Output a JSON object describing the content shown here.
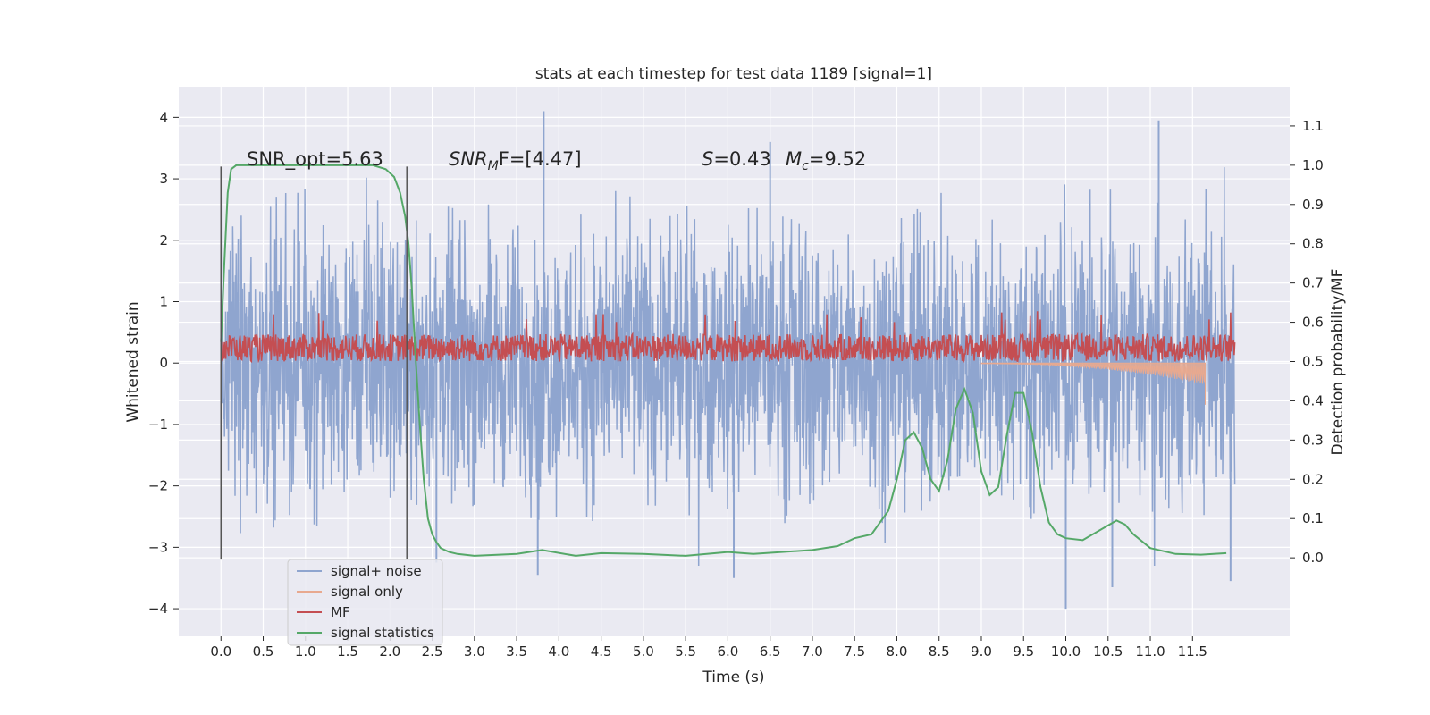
{
  "chart_data": {
    "type": "line",
    "title": "stats at each timestep for test data 1189 [signal=1]",
    "xlabel": "Time (s)",
    "ylabel_left": "Whitened strain",
    "ylabel_right": "Detection probability/MF",
    "xlim": [
      -0.5,
      12.65
    ],
    "ylim_left": [
      -4.45,
      4.5
    ],
    "ylim_right": [
      -0.2,
      1.2
    ],
    "xticks": [
      0.0,
      0.5,
      1.0,
      1.5,
      2.0,
      2.5,
      3.0,
      3.5,
      4.0,
      4.5,
      5.0,
      5.5,
      6.0,
      6.5,
      7.0,
      7.5,
      8.0,
      8.5,
      9.0,
      9.5,
      10.0,
      10.5,
      11.0,
      11.5
    ],
    "xtick_labels": [
      "0.0",
      "0.5",
      "1.0",
      "1.5",
      "2.0",
      "2.5",
      "3.0",
      "3.5",
      "4.0",
      "4.5",
      "5.0",
      "5.5",
      "6.0",
      "6.5",
      "7.0",
      "7.5",
      "8.0",
      "8.5",
      "9.0",
      "9.5",
      "10.0",
      "10.5",
      "11.0",
      "11.5"
    ],
    "yticks_left": [
      4,
      3,
      2,
      1,
      0,
      -1,
      -2,
      -3,
      -4
    ],
    "ytick_labels_left": [
      "4",
      "3",
      "2",
      "1",
      "0",
      "−1",
      "−2",
      "−3",
      "−4"
    ],
    "yticks_right": [
      1.1,
      1.0,
      0.9,
      0.8,
      0.7,
      0.6,
      0.5,
      0.4,
      0.3,
      0.2,
      0.1,
      0.0
    ],
    "ytick_labels_right": [
      "1.1",
      "1.0",
      "0.9",
      "0.8",
      "0.7",
      "0.6",
      "0.5",
      "0.4",
      "0.3",
      "0.2",
      "0.1",
      "0.0"
    ],
    "grid": true,
    "legend_position": "lower-left",
    "vlines": [
      0.0,
      2.2
    ],
    "vline_range_left": [
      -3.2,
      3.2
    ],
    "annotations": {
      "snr_opt": "SNR_opt=5.63",
      "snr_mf_main": "SNR",
      "snr_mf_sub": "M",
      "snr_mf_rest": "F=[4.47]",
      "s_main": "S",
      "s_rest": "=0.43",
      "mc_main": "M",
      "mc_sub": "c",
      "mc_rest": "=9.52"
    },
    "series": [
      {
        "name": "signal+ noise",
        "axis": "left",
        "color": "#8fa5cf",
        "kind": "noise",
        "x_range": [
          0.0,
          12.0
        ],
        "typical_range": [
          -2.0,
          2.0
        ],
        "spikes": [
          [
            3.82,
            4.1
          ],
          [
            11.1,
            3.95
          ],
          [
            10.0,
            -4.0
          ],
          [
            10.55,
            -3.65
          ],
          [
            3.75,
            -3.45
          ],
          [
            11.95,
            -3.55
          ],
          [
            6.07,
            -3.5
          ],
          [
            6.5,
            3.6
          ],
          [
            2.55,
            -3.25
          ]
        ]
      },
      {
        "name": "signal only",
        "axis": "left",
        "color": "#e8a98f",
        "kind": "chirp",
        "x_range": [
          9.0,
          11.65
        ],
        "end_value": -0.68
      },
      {
        "name": "MF",
        "axis": "right",
        "color": "#c44e52",
        "kind": "band",
        "x_range": [
          0.0,
          12.0
        ],
        "band": [
          0.5,
          0.57
        ]
      },
      {
        "name": "signal statistics",
        "axis": "right",
        "color": "#55a868",
        "kind": "line",
        "x": [
          0.0,
          0.04,
          0.08,
          0.12,
          0.18,
          0.25,
          0.4,
          0.6,
          1.0,
          1.5,
          1.8,
          1.95,
          2.05,
          2.12,
          2.18,
          2.22,
          2.26,
          2.3,
          2.35,
          2.4,
          2.45,
          2.5,
          2.55,
          2.6,
          2.7,
          2.8,
          3.0,
          3.5,
          3.8,
          4.2,
          4.5,
          5.0,
          5.5,
          6.0,
          6.3,
          7.0,
          7.3,
          7.5,
          7.7,
          7.9,
          8.0,
          8.1,
          8.2,
          8.3,
          8.4,
          8.5,
          8.6,
          8.7,
          8.8,
          8.9,
          9.0,
          9.1,
          9.2,
          9.3,
          9.4,
          9.5,
          9.6,
          9.7,
          9.8,
          9.9,
          10.0,
          10.2,
          10.4,
          10.6,
          10.7,
          10.8,
          11.0,
          11.3,
          11.6,
          11.9
        ],
        "values": [
          0.55,
          0.75,
          0.93,
          0.99,
          1.0,
          1.0,
          1.0,
          1.0,
          1.0,
          1.0,
          1.0,
          0.99,
          0.97,
          0.93,
          0.87,
          0.8,
          0.68,
          0.52,
          0.35,
          0.2,
          0.1,
          0.06,
          0.04,
          0.025,
          0.015,
          0.01,
          0.005,
          0.01,
          0.02,
          0.005,
          0.012,
          0.01,
          0.005,
          0.015,
          0.01,
          0.02,
          0.03,
          0.05,
          0.06,
          0.12,
          0.2,
          0.3,
          0.32,
          0.28,
          0.2,
          0.17,
          0.25,
          0.38,
          0.43,
          0.37,
          0.22,
          0.16,
          0.18,
          0.31,
          0.42,
          0.42,
          0.32,
          0.18,
          0.09,
          0.06,
          0.05,
          0.045,
          0.07,
          0.095,
          0.085,
          0.06,
          0.025,
          0.01,
          0.008,
          0.012
        ]
      }
    ]
  }
}
